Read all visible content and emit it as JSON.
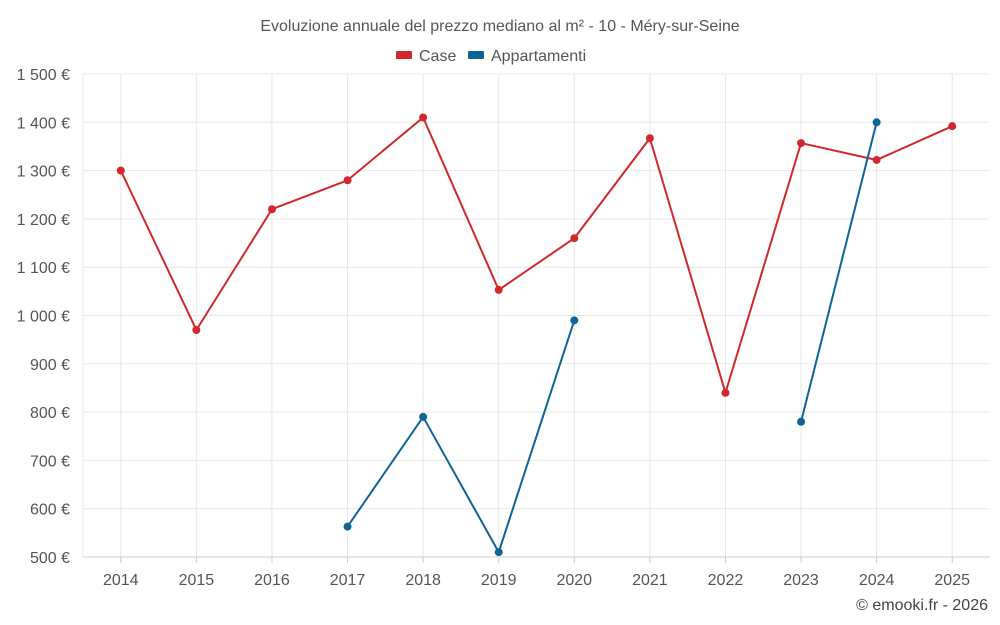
{
  "chart_data": {
    "type": "line",
    "title": "Evoluzione annuale del prezzo mediano al m² - 10 - Méry-sur-Seine",
    "categories": [
      "2014",
      "2015",
      "2016",
      "2017",
      "2018",
      "2019",
      "2020",
      "2021",
      "2022",
      "2023",
      "2024",
      "2025"
    ],
    "series": [
      {
        "name": "Case",
        "color": "#d0282e",
        "values": [
          1300,
          970,
          1220,
          1280,
          1410,
          1053,
          1160,
          1367,
          840,
          1357,
          1322,
          1392
        ]
      },
      {
        "name": "Appartamenti",
        "color": "#0f6496",
        "values": [
          null,
          null,
          null,
          563,
          790,
          510,
          990,
          null,
          null,
          780,
          1400,
          null
        ]
      }
    ],
    "y_ticks": [
      "500 €",
      "600 €",
      "700 €",
      "800 €",
      "900 €",
      "1 000 €",
      "1 100 €",
      "1 200 €",
      "1 300 €",
      "1 400 €",
      "1 500 €"
    ],
    "ylim": [
      500,
      1500
    ],
    "legend_position": "top-center",
    "grid": true
  },
  "credit": "© emooki.fr - 2026"
}
